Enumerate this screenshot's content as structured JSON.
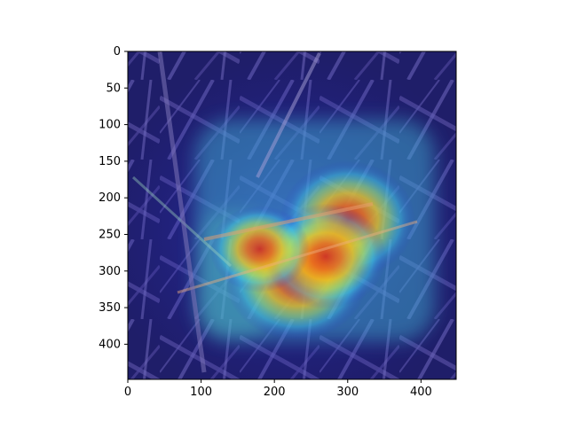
{
  "chart_data": {
    "type": "heatmap",
    "title": "",
    "xlabel": "",
    "ylabel": "",
    "description_hidden": false,
    "xlim": [
      0,
      448
    ],
    "ylim": [
      448,
      0
    ],
    "x_ticks": [
      0,
      100,
      200,
      300,
      400
    ],
    "y_ticks": [
      0,
      50,
      100,
      150,
      200,
      250,
      300,
      350,
      400
    ],
    "grid": false,
    "colormap": "jet",
    "overlay": "attention heatmap on photo of a bird in branches",
    "hotspots": [
      {
        "x": 300,
        "y": 230,
        "intensity": 0.95
      },
      {
        "x": 230,
        "y": 310,
        "intensity": 1.0
      },
      {
        "x": 270,
        "y": 280,
        "intensity": 0.85
      },
      {
        "x": 180,
        "y": 270,
        "intensity": 0.7
      }
    ]
  }
}
